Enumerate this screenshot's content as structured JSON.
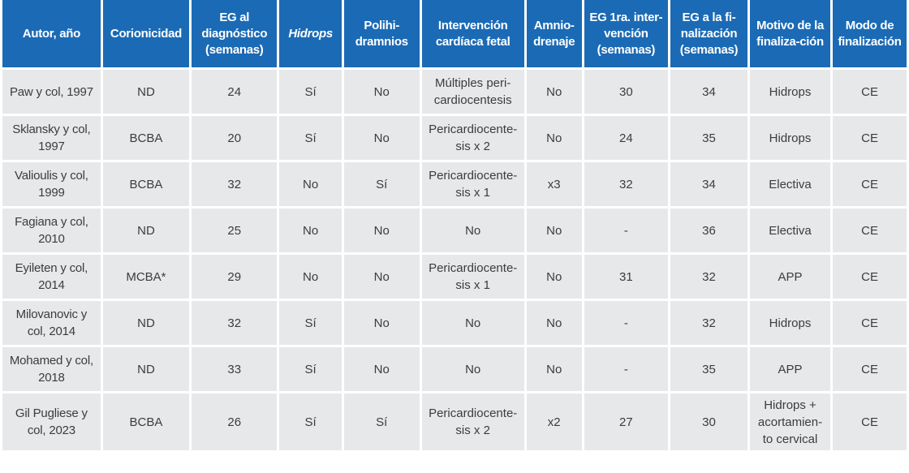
{
  "headers": [
    "Autor, año",
    "Corionicidad",
    "EG al diagnóstico (semanas)",
    "Hidrops",
    "Polihi-dramnios",
    "Intervención cardíaca fetal",
    "Amnio-drenaje",
    "EG 1ra. inter-vención (semanas)",
    "EG a la fi-nalización (semanas)",
    "Motivo de la finaliza-ción",
    "Modo de finalización"
  ],
  "rows": [
    [
      "Paw y col, 1997",
      "ND",
      "24",
      "Sí",
      "No",
      "Múltiples peri-cardiocentesis",
      "No",
      "30",
      "34",
      "Hidrops",
      "CE"
    ],
    [
      "Sklansky y col, 1997",
      "BCBA",
      "20",
      "Sí",
      "No",
      "Pericardiocente-sis x 2",
      "No",
      "24",
      "35",
      "Hidrops",
      "CE"
    ],
    [
      "Valioulis y col, 1999",
      "BCBA",
      "32",
      "No",
      "Sí",
      "Pericardiocente-sis x 1",
      "x3",
      "32",
      "34",
      "Electiva",
      "CE"
    ],
    [
      "Fagiana y col, 2010",
      "ND",
      "25",
      "No",
      "No",
      "No",
      "No",
      "-",
      "36",
      "Electiva",
      "CE"
    ],
    [
      "Eyileten y col, 2014",
      "MCBA*",
      "29",
      "No",
      "No",
      "Pericardiocente-sis x 1",
      "No",
      "31",
      "32",
      "APP",
      "CE"
    ],
    [
      "Milovanovic y col, 2014",
      "ND",
      "32",
      "Sí",
      "No",
      "No",
      "No",
      "-",
      "32",
      "Hidrops",
      "CE"
    ],
    [
      "Mohamed y col, 2018",
      "ND",
      "33",
      "Sí",
      "No",
      "No",
      "No",
      "-",
      "35",
      "APP",
      "CE"
    ],
    [
      "Gil Pugliese y col, 2023",
      "BCBA",
      "26",
      "Sí",
      "Sí",
      "Pericardiocente-sis x 2",
      "x2",
      "27",
      "30",
      "Hidrops + acortamien-to cervical",
      "CE"
    ]
  ]
}
